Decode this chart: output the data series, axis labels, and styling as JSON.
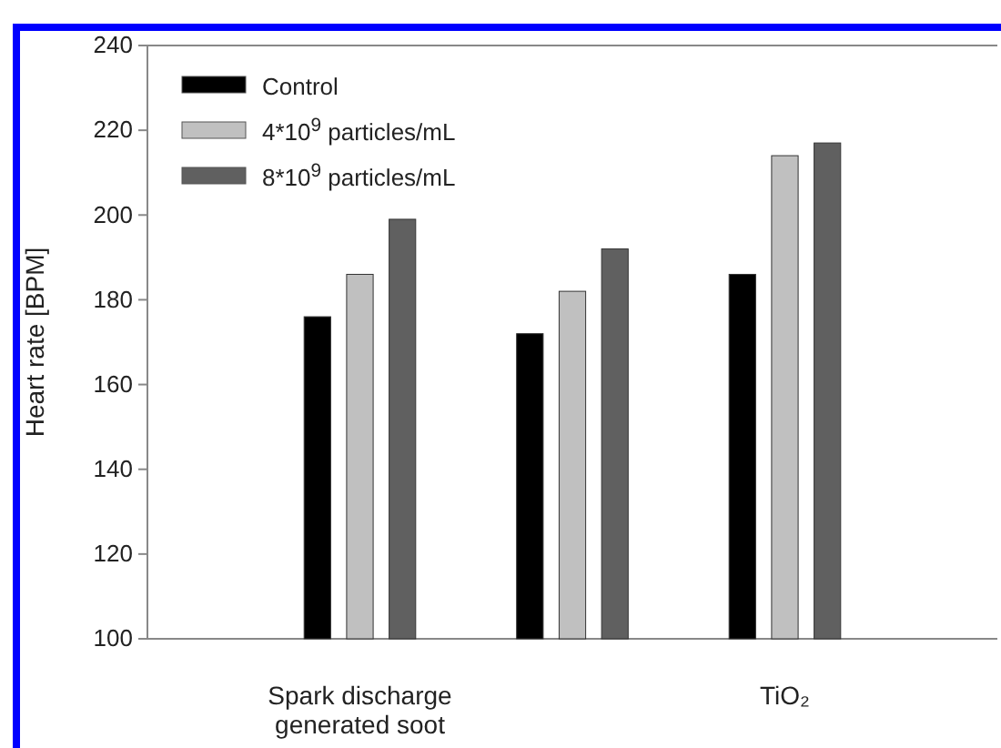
{
  "chart_data": {
    "type": "bar",
    "ylabel": "Heart rate [BPM]",
    "categories": [
      "Spark discharge generated soot",
      null,
      "TiO₂"
    ],
    "series": [
      {
        "name": "Control",
        "color": "#000000",
        "values": [
          176,
          172,
          186
        ]
      },
      {
        "name": "4*10$^{9}$ particles/mL",
        "color": "#c0c0c0",
        "values": [
          186,
          182,
          214
        ]
      },
      {
        "name": "8*10$^{9}$ particles/mL",
        "color": "#606060",
        "values": [
          199,
          192,
          217
        ]
      }
    ],
    "ylim": [
      100,
      240
    ],
    "yticks": [
      100,
      120,
      140,
      160,
      180,
      200,
      220,
      240
    ],
    "legend": "top left",
    "grid": false
  }
}
